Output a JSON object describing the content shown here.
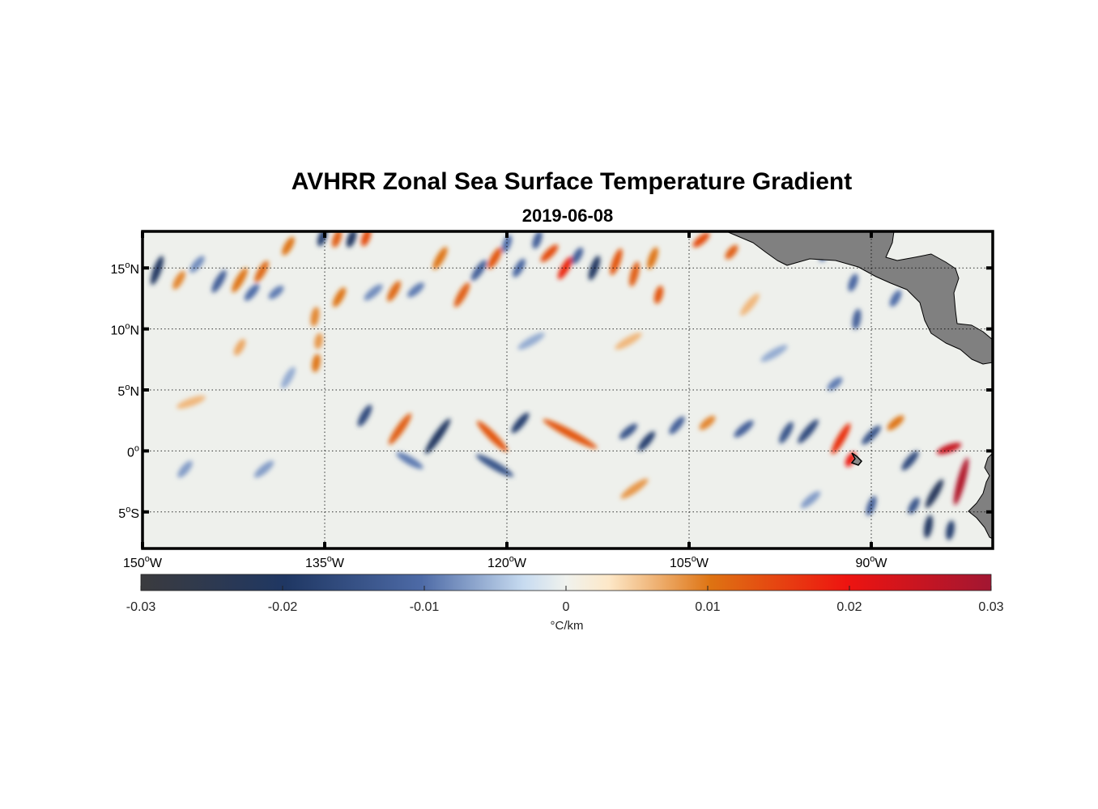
{
  "figure": {
    "title": "AVHRR Zonal Sea Surface Temperature Gradient",
    "subtitle": "2019-06-08"
  },
  "map": {
    "lon_range": [
      -150,
      -80
    ],
    "lat_range": [
      -8,
      18
    ],
    "lon_gridlines": [
      -135,
      -120,
      -105,
      -90
    ],
    "lat_gridlines": [
      15,
      10,
      5,
      0,
      -5
    ],
    "x_ticks": [
      {
        "value": -150,
        "num": "150",
        "sup": "o",
        "hem": "W"
      },
      {
        "value": -135,
        "num": "135",
        "sup": "o",
        "hem": "W"
      },
      {
        "value": -120,
        "num": "120",
        "sup": "o",
        "hem": "W"
      },
      {
        "value": -105,
        "num": "105",
        "sup": "o",
        "hem": "W"
      },
      {
        "value": -90,
        "num": "90",
        "sup": "o",
        "hem": "W"
      }
    ],
    "y_ticks": [
      {
        "value": 15,
        "num": "15",
        "sup": "o",
        "hem": "N"
      },
      {
        "value": 10,
        "num": "10",
        "sup": "o",
        "hem": "N"
      },
      {
        "value": 5,
        "num": "5",
        "sup": "o",
        "hem": "N"
      },
      {
        "value": 0,
        "num": "0",
        "sup": "o",
        "hem": ""
      },
      {
        "value": -5,
        "num": "5",
        "sup": "o",
        "hem": "S"
      }
    ],
    "land_color": "#808080",
    "features": [
      {
        "lon": -148.8,
        "lat": 14.8,
        "v": -0.02,
        "len": 2.0,
        "ang": 70
      },
      {
        "lon": -147.0,
        "lat": 14.0,
        "v": 0.009,
        "len": 1.2,
        "ang": 60
      },
      {
        "lon": -145.5,
        "lat": 15.3,
        "v": -0.008,
        "len": 1.2,
        "ang": 50
      },
      {
        "lon": -143.7,
        "lat": 13.9,
        "v": -0.012,
        "len": 1.6,
        "ang": 60
      },
      {
        "lon": -142.0,
        "lat": 14.0,
        "v": 0.01,
        "len": 1.8,
        "ang": 60
      },
      {
        "lon": -141.0,
        "lat": 13.0,
        "v": -0.01,
        "len": 1.2,
        "ang": 50
      },
      {
        "lon": -140.2,
        "lat": 14.7,
        "v": 0.011,
        "len": 1.5,
        "ang": 60
      },
      {
        "lon": -139.0,
        "lat": 13.0,
        "v": -0.009,
        "len": 1.0,
        "ang": 40
      },
      {
        "lon": -138.0,
        "lat": 16.8,
        "v": 0.01,
        "len": 1.2,
        "ang": 60
      },
      {
        "lon": -135.2,
        "lat": 17.5,
        "v": -0.018,
        "len": 1.0,
        "ang": 70
      },
      {
        "lon": -134.0,
        "lat": 17.4,
        "v": 0.012,
        "len": 1.0,
        "ang": 70
      },
      {
        "lon": -132.8,
        "lat": 17.4,
        "v": -0.02,
        "len": 1.0,
        "ang": 70
      },
      {
        "lon": -131.6,
        "lat": 17.5,
        "v": 0.014,
        "len": 1.0,
        "ang": 70
      },
      {
        "lon": -135.8,
        "lat": 11.0,
        "v": 0.009,
        "len": 1.1,
        "ang": 80
      },
      {
        "lon": -135.5,
        "lat": 9.0,
        "v": 0.008,
        "len": 0.8,
        "ang": 80
      },
      {
        "lon": -135.7,
        "lat": 7.2,
        "v": 0.01,
        "len": 1.0,
        "ang": 80
      },
      {
        "lon": -133.8,
        "lat": 12.6,
        "v": 0.01,
        "len": 1.3,
        "ang": 60
      },
      {
        "lon": -131.0,
        "lat": 13.0,
        "v": -0.008,
        "len": 1.4,
        "ang": 40
      },
      {
        "lon": -129.3,
        "lat": 13.1,
        "v": 0.011,
        "len": 1.4,
        "ang": 60
      },
      {
        "lon": -127.5,
        "lat": 13.2,
        "v": -0.009,
        "len": 1.2,
        "ang": 40
      },
      {
        "lon": -125.5,
        "lat": 15.8,
        "v": 0.01,
        "len": 1.6,
        "ang": 60
      },
      {
        "lon": -123.7,
        "lat": 12.8,
        "v": 0.012,
        "len": 1.8,
        "ang": 60
      },
      {
        "lon": -122.3,
        "lat": 14.8,
        "v": -0.012,
        "len": 1.5,
        "ang": 55
      },
      {
        "lon": -121.0,
        "lat": 15.8,
        "v": 0.013,
        "len": 1.5,
        "ang": 60
      },
      {
        "lon": -120.0,
        "lat": 17.0,
        "v": -0.01,
        "len": 1.0,
        "ang": 70
      },
      {
        "lon": -119.0,
        "lat": 15.0,
        "v": -0.011,
        "len": 1.2,
        "ang": 60
      },
      {
        "lon": -117.5,
        "lat": 17.3,
        "v": -0.012,
        "len": 1.0,
        "ang": 70
      },
      {
        "lon": -116.5,
        "lat": 16.2,
        "v": 0.014,
        "len": 1.4,
        "ang": 45
      },
      {
        "lon": -115.2,
        "lat": 15.0,
        "v": 0.018,
        "len": 1.6,
        "ang": 60
      },
      {
        "lon": -114.2,
        "lat": 16.0,
        "v": -0.012,
        "len": 1.0,
        "ang": 60
      },
      {
        "lon": -112.8,
        "lat": 15.0,
        "v": -0.02,
        "len": 1.6,
        "ang": 70
      },
      {
        "lon": -111.0,
        "lat": 15.5,
        "v": 0.013,
        "len": 1.8,
        "ang": 70
      },
      {
        "lon": -109.5,
        "lat": 14.5,
        "v": 0.012,
        "len": 1.6,
        "ang": 75
      },
      {
        "lon": -108.0,
        "lat": 15.8,
        "v": 0.01,
        "len": 1.4,
        "ang": 70
      },
      {
        "lon": -107.5,
        "lat": 12.8,
        "v": 0.013,
        "len": 1.0,
        "ang": 75
      },
      {
        "lon": -104.0,
        "lat": 17.3,
        "v": 0.014,
        "len": 1.2,
        "ang": 40
      },
      {
        "lon": -101.5,
        "lat": 16.3,
        "v": 0.012,
        "len": 0.9,
        "ang": 50
      },
      {
        "lon": -93.8,
        "lat": 16.2,
        "v": -0.01,
        "len": 1.0,
        "ang": 60
      },
      {
        "lon": -91.5,
        "lat": 13.8,
        "v": -0.011,
        "len": 1.0,
        "ang": 70
      },
      {
        "lon": -91.2,
        "lat": 10.8,
        "v": -0.012,
        "len": 1.2,
        "ang": 80
      },
      {
        "lon": -93.0,
        "lat": 5.5,
        "v": -0.009,
        "len": 1.0,
        "ang": 40
      },
      {
        "lon": -88.0,
        "lat": 12.5,
        "v": -0.01,
        "len": 1.0,
        "ang": 60
      },
      {
        "lon": -131.7,
        "lat": 2.9,
        "v": -0.016,
        "len": 1.5,
        "ang": 60
      },
      {
        "lon": -128.8,
        "lat": 1.8,
        "v": 0.012,
        "len": 2.6,
        "ang": 55
      },
      {
        "lon": -125.7,
        "lat": 1.2,
        "v": -0.02,
        "len": 3.0,
        "ang": 55
      },
      {
        "lon": -121.2,
        "lat": 1.2,
        "v": 0.013,
        "len": 3.0,
        "ang": -45
      },
      {
        "lon": -118.9,
        "lat": 2.3,
        "v": -0.018,
        "len": 1.6,
        "ang": 50
      },
      {
        "lon": -114.8,
        "lat": 1.4,
        "v": 0.013,
        "len": 4.5,
        "ang": -28
      },
      {
        "lon": -121.0,
        "lat": -1.2,
        "v": -0.014,
        "len": 3.0,
        "ang": -30
      },
      {
        "lon": -110.0,
        "lat": 1.6,
        "v": -0.014,
        "len": 1.3,
        "ang": 40
      },
      {
        "lon": -108.5,
        "lat": 0.8,
        "v": -0.018,
        "len": 1.5,
        "ang": 50
      },
      {
        "lon": -106.0,
        "lat": 2.1,
        "v": -0.012,
        "len": 1.3,
        "ang": 50
      },
      {
        "lon": -109.5,
        "lat": -3.1,
        "v": 0.008,
        "len": 2.2,
        "ang": 35
      },
      {
        "lon": -103.5,
        "lat": 2.3,
        "v": 0.009,
        "len": 1.1,
        "ang": 40
      },
      {
        "lon": -100.5,
        "lat": 1.8,
        "v": -0.012,
        "len": 1.5,
        "ang": 40
      },
      {
        "lon": -97.0,
        "lat": 1.5,
        "v": -0.014,
        "len": 1.5,
        "ang": 60
      },
      {
        "lon": -95.2,
        "lat": 1.6,
        "v": -0.016,
        "len": 2.0,
        "ang": 50
      },
      {
        "lon": -92.5,
        "lat": 1.0,
        "v": 0.017,
        "len": 2.4,
        "ang": 60
      },
      {
        "lon": -90.0,
        "lat": 1.3,
        "v": -0.014,
        "len": 1.6,
        "ang": 45
      },
      {
        "lon": -88.0,
        "lat": 2.3,
        "v": 0.01,
        "len": 1.2,
        "ang": 40
      },
      {
        "lon": -86.8,
        "lat": -0.8,
        "v": -0.016,
        "len": 1.5,
        "ang": 50
      },
      {
        "lon": -83.6,
        "lat": 0.2,
        "v": 0.025,
        "len": 1.6,
        "ang": 20
      },
      {
        "lon": -82.6,
        "lat": -2.5,
        "v": 0.028,
        "len": 3.5,
        "ang": 75
      },
      {
        "lon": -84.8,
        "lat": -3.5,
        "v": -0.022,
        "len": 2.2,
        "ang": 60
      },
      {
        "lon": -85.3,
        "lat": -6.2,
        "v": -0.02,
        "len": 1.4,
        "ang": 80
      },
      {
        "lon": -83.5,
        "lat": -6.5,
        "v": -0.018,
        "len": 1.1,
        "ang": 80
      },
      {
        "lon": -86.5,
        "lat": -4.5,
        "v": -0.014,
        "len": 1.0,
        "ang": 60
      },
      {
        "lon": -90.0,
        "lat": -4.5,
        "v": -0.012,
        "len": 1.2,
        "ang": 70
      },
      {
        "lon": -91.7,
        "lat": -0.7,
        "v": 0.02,
        "len": 0.8,
        "ang": 60
      },
      {
        "lon": -146.0,
        "lat": 4.0,
        "v": 0.006,
        "len": 2.0,
        "ang": 20
      },
      {
        "lon": -140.0,
        "lat": -1.5,
        "v": -0.007,
        "len": 1.5,
        "ang": 40
      },
      {
        "lon": -146.5,
        "lat": -1.5,
        "v": -0.007,
        "len": 1.2,
        "ang": 50
      },
      {
        "lon": -128.0,
        "lat": -0.8,
        "v": -0.009,
        "len": 2.0,
        "ang": -30
      },
      {
        "lon": -138.0,
        "lat": 6.0,
        "v": -0.006,
        "len": 1.5,
        "ang": 60
      },
      {
        "lon": -142.0,
        "lat": 8.5,
        "v": 0.007,
        "len": 1.0,
        "ang": 60
      },
      {
        "lon": -118.0,
        "lat": 9.0,
        "v": -0.006,
        "len": 2.0,
        "ang": 30
      },
      {
        "lon": -110.0,
        "lat": 9.0,
        "v": 0.006,
        "len": 2.0,
        "ang": 30
      },
      {
        "lon": -98.0,
        "lat": 8.0,
        "v": -0.006,
        "len": 2.0,
        "ang": 30
      },
      {
        "lon": -100.0,
        "lat": 12.0,
        "v": 0.006,
        "len": 1.8,
        "ang": 50
      },
      {
        "lon": -95.0,
        "lat": -4.0,
        "v": -0.007,
        "len": 1.5,
        "ang": 40
      }
    ]
  },
  "colorbar": {
    "vmin": -0.03,
    "vmax": 0.03,
    "tick_labels": [
      {
        "value": -0.03,
        "label": "-0.03"
      },
      {
        "value": -0.02,
        "label": "-0.02"
      },
      {
        "value": -0.01,
        "label": "-0.01"
      },
      {
        "value": 0,
        "label": "0"
      },
      {
        "value": 0.01,
        "label": "0.01"
      },
      {
        "value": 0.02,
        "label": "0.02"
      },
      {
        "value": 0.03,
        "label": "0.03"
      }
    ],
    "unit_label": "°C/km",
    "stops": [
      {
        "v": 0.0,
        "c": "#3b3b3e"
      },
      {
        "v": 0.17,
        "c": "#1f3763"
      },
      {
        "v": 0.33,
        "c": "#4d6aa6"
      },
      {
        "v": 0.45,
        "c": "#c7dbf0"
      },
      {
        "v": 0.5,
        "c": "#f0f2ee"
      },
      {
        "v": 0.55,
        "c": "#fde8c8"
      },
      {
        "v": 0.67,
        "c": "#de7312"
      },
      {
        "v": 0.83,
        "c": "#ee1410"
      },
      {
        "v": 1.0,
        "c": "#a21632"
      }
    ]
  }
}
